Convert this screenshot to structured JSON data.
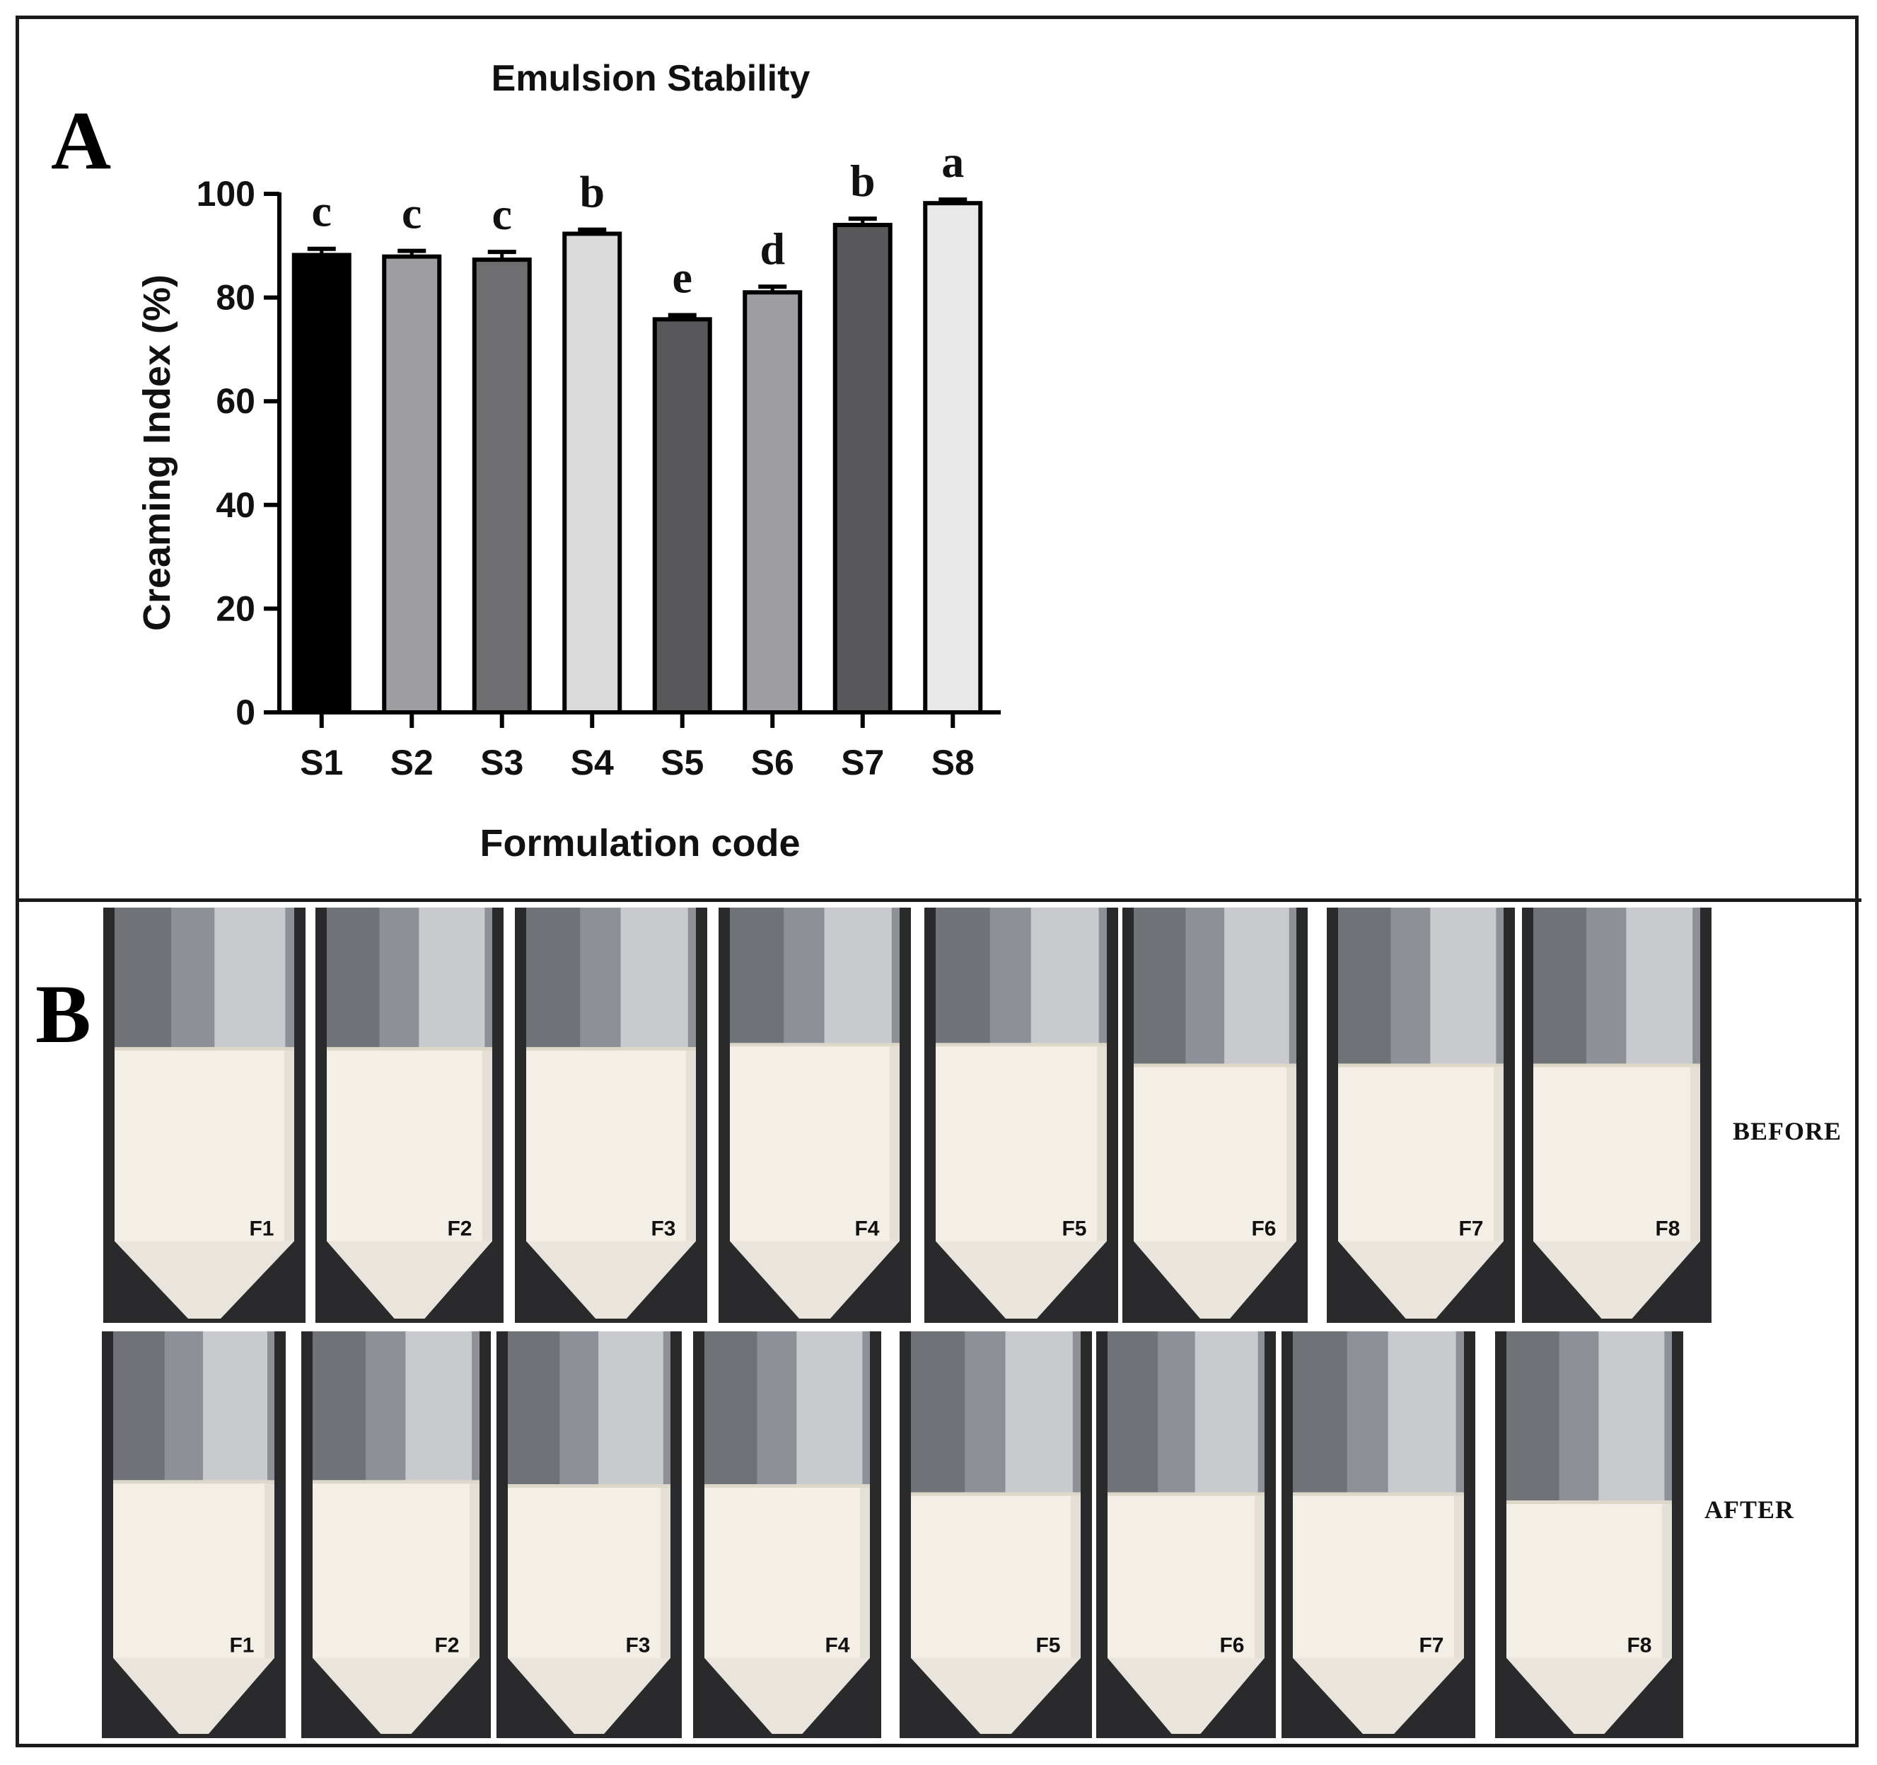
{
  "panel_a_letter": "A",
  "panel_b_letter": "B",
  "chart_data": {
    "type": "bar",
    "title": "Emulsion Stability",
    "xlabel": "Formulation code",
    "ylabel": "Creaming Index (%)",
    "ylim": [
      0,
      100
    ],
    "yticks": [
      0,
      20,
      40,
      60,
      80,
      100
    ],
    "categories": [
      "S1",
      "S2",
      "S3",
      "S4",
      "S5",
      "S6",
      "S7",
      "S8"
    ],
    "values": [
      88.2,
      87.9,
      87.3,
      92.3,
      75.8,
      81.0,
      94.0,
      98.2
    ],
    "errors": [
      1.2,
      1.1,
      1.5,
      0.8,
      0.8,
      1.1,
      1.2,
      0.7
    ],
    "significance_letters": [
      "c",
      "c",
      "c",
      "b",
      "e",
      "d",
      "b",
      "a"
    ],
    "bar_colors": [
      "#000000",
      "#9e9ea2",
      "#6e6e70",
      "#dadada",
      "#58585a",
      "#9e9ea2",
      "#58585a",
      "#e8e8e8"
    ]
  },
  "panel_b": {
    "before_label": "BEFORE",
    "after_label": "AFTER",
    "before_tubes": [
      "F1",
      "F2",
      "F3",
      "F4",
      "F5",
      "F6",
      "F7",
      "F8"
    ],
    "after_tubes": [
      "F1",
      "F2",
      "F3",
      "F4",
      "F5",
      "F6",
      "F7",
      "F8"
    ],
    "before_fill_fraction": [
      0.66,
      0.66,
      0.66,
      0.67,
      0.67,
      0.62,
      0.62,
      0.62
    ],
    "after_fill_fraction": [
      0.63,
      0.63,
      0.62,
      0.62,
      0.6,
      0.6,
      0.6,
      0.58
    ]
  }
}
